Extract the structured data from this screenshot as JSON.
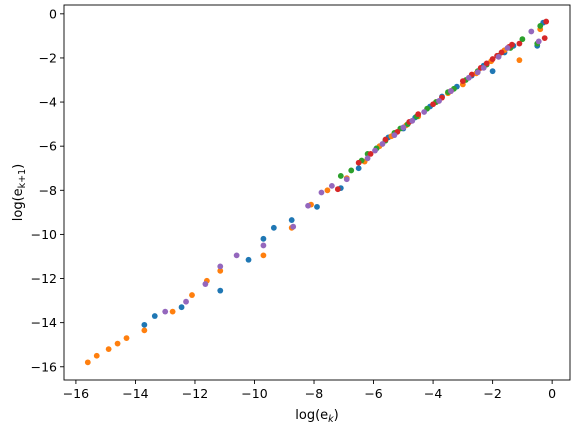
{
  "chart_data": {
    "type": "scatter",
    "title": "",
    "xlabel_base": "log(e",
    "xlabel_sub": "k",
    "xlabel_close": ")",
    "ylabel_base": "log(e",
    "ylabel_sub": "k+1",
    "ylabel_close": ")",
    "xlim": [
      -16.4,
      0.6
    ],
    "ylim": [
      -16.6,
      0.4
    ],
    "xticks": [
      -16,
      -14,
      -12,
      -10,
      -8,
      -6,
      -4,
      -2,
      0
    ],
    "yticks": [
      -16,
      -14,
      -12,
      -10,
      -8,
      -6,
      -4,
      -2,
      0
    ],
    "grid": false,
    "series": [
      {
        "color": "#1f77b4",
        "points": [
          [
            -13.7,
            -14.1
          ],
          [
            -13.35,
            -13.7
          ],
          [
            -12.45,
            -13.3
          ],
          [
            -11.15,
            -12.55
          ],
          [
            -10.2,
            -11.15
          ],
          [
            -9.7,
            -10.2
          ],
          [
            -9.35,
            -9.7
          ],
          [
            -8.75,
            -9.35
          ],
          [
            -7.9,
            -8.75
          ],
          [
            -7.1,
            -7.9
          ],
          [
            -6.5,
            -7.0
          ],
          [
            -5.9,
            -6.1
          ],
          [
            -5.5,
            -5.6
          ],
          [
            -5.0,
            -5.2
          ],
          [
            -4.6,
            -4.7
          ],
          [
            -4.1,
            -4.2
          ],
          [
            -3.7,
            -3.75
          ],
          [
            -3.2,
            -3.3
          ],
          [
            -2.7,
            -2.8
          ],
          [
            -2.3,
            -2.35
          ],
          [
            -2.0,
            -2.6
          ],
          [
            -1.6,
            -1.75
          ],
          [
            -1.3,
            -1.45
          ],
          [
            -0.5,
            -1.45
          ],
          [
            -0.3,
            -0.4
          ]
        ]
      },
      {
        "color": "#ff7f0e",
        "points": [
          [
            -15.6,
            -15.8
          ],
          [
            -15.3,
            -15.5
          ],
          [
            -14.9,
            -15.2
          ],
          [
            -14.6,
            -14.95
          ],
          [
            -14.3,
            -14.7
          ],
          [
            -13.7,
            -14.35
          ],
          [
            -12.75,
            -13.5
          ],
          [
            -12.1,
            -12.75
          ],
          [
            -11.6,
            -12.1
          ],
          [
            -11.15,
            -11.65
          ],
          [
            -9.7,
            -10.95
          ],
          [
            -8.75,
            -9.7
          ],
          [
            -8.1,
            -8.65
          ],
          [
            -7.55,
            -8.0
          ],
          [
            -6.9,
            -7.45
          ],
          [
            -6.3,
            -6.7
          ],
          [
            -5.8,
            -6.0
          ],
          [
            -5.4,
            -5.55
          ],
          [
            -4.9,
            -5.05
          ],
          [
            -4.5,
            -4.65
          ],
          [
            -3.9,
            -4.0
          ],
          [
            -3.5,
            -3.6
          ],
          [
            -3.0,
            -3.2
          ],
          [
            -2.55,
            -2.7
          ],
          [
            -2.05,
            -2.15
          ],
          [
            -1.6,
            -1.65
          ],
          [
            -1.1,
            -2.1
          ],
          [
            -0.4,
            -0.7
          ]
        ]
      },
      {
        "color": "#2ca02c",
        "points": [
          [
            -7.1,
            -7.35
          ],
          [
            -6.75,
            -7.1
          ],
          [
            -6.4,
            -6.65
          ],
          [
            -6.2,
            -6.35
          ],
          [
            -5.9,
            -6.1
          ],
          [
            -5.6,
            -5.75
          ],
          [
            -5.3,
            -5.4
          ],
          [
            -5.1,
            -5.2
          ],
          [
            -4.85,
            -5.0
          ],
          [
            -4.55,
            -4.65
          ],
          [
            -4.2,
            -4.3
          ],
          [
            -3.9,
            -4.0
          ],
          [
            -3.5,
            -3.55
          ],
          [
            -3.3,
            -3.4
          ],
          [
            -2.9,
            -3.0
          ],
          [
            -2.5,
            -2.6
          ],
          [
            -2.2,
            -2.3
          ],
          [
            -1.8,
            -1.9
          ],
          [
            -1.4,
            -1.55
          ],
          [
            -1.0,
            -1.15
          ],
          [
            -0.5,
            -1.35
          ],
          [
            -0.4,
            -0.55
          ]
        ]
      },
      {
        "color": "#d62728",
        "points": [
          [
            -7.2,
            -7.95
          ],
          [
            -6.5,
            -6.75
          ],
          [
            -6.1,
            -6.35
          ],
          [
            -5.6,
            -5.7
          ],
          [
            -5.2,
            -5.35
          ],
          [
            -4.8,
            -4.9
          ],
          [
            -4.5,
            -4.55
          ],
          [
            -4.0,
            -4.1
          ],
          [
            -3.7,
            -3.8
          ],
          [
            -3.4,
            -3.5
          ],
          [
            -3.0,
            -3.05
          ],
          [
            -2.7,
            -2.75
          ],
          [
            -2.4,
            -2.45
          ],
          [
            -2.2,
            -2.25
          ],
          [
            -2.0,
            -2.05
          ],
          [
            -1.85,
            -1.9
          ],
          [
            -1.7,
            -1.75
          ],
          [
            -1.45,
            -1.5
          ],
          [
            -1.35,
            -1.4
          ],
          [
            -1.1,
            -1.35
          ],
          [
            -0.25,
            -1.1
          ],
          [
            -0.2,
            -0.35
          ]
        ]
      },
      {
        "color": "#9467bd",
        "points": [
          [
            -13.0,
            -13.5
          ],
          [
            -12.3,
            -13.05
          ],
          [
            -11.65,
            -12.25
          ],
          [
            -11.15,
            -11.45
          ],
          [
            -10.6,
            -10.95
          ],
          [
            -9.7,
            -10.5
          ],
          [
            -8.7,
            -9.65
          ],
          [
            -8.2,
            -8.7
          ],
          [
            -7.75,
            -8.1
          ],
          [
            -7.4,
            -7.8
          ],
          [
            -6.9,
            -7.5
          ],
          [
            -6.2,
            -6.55
          ],
          [
            -5.95,
            -6.2
          ],
          [
            -5.7,
            -5.9
          ],
          [
            -5.3,
            -5.5
          ],
          [
            -5.0,
            -5.15
          ],
          [
            -4.7,
            -4.85
          ],
          [
            -4.3,
            -4.45
          ],
          [
            -3.8,
            -3.95
          ],
          [
            -3.4,
            -3.5
          ],
          [
            -2.8,
            -2.9
          ],
          [
            -2.5,
            -2.65
          ],
          [
            -2.3,
            -2.45
          ],
          [
            -1.8,
            -1.95
          ],
          [
            -1.5,
            -1.55
          ],
          [
            -0.7,
            -0.8
          ],
          [
            -0.45,
            -1.25
          ]
        ]
      }
    ]
  }
}
